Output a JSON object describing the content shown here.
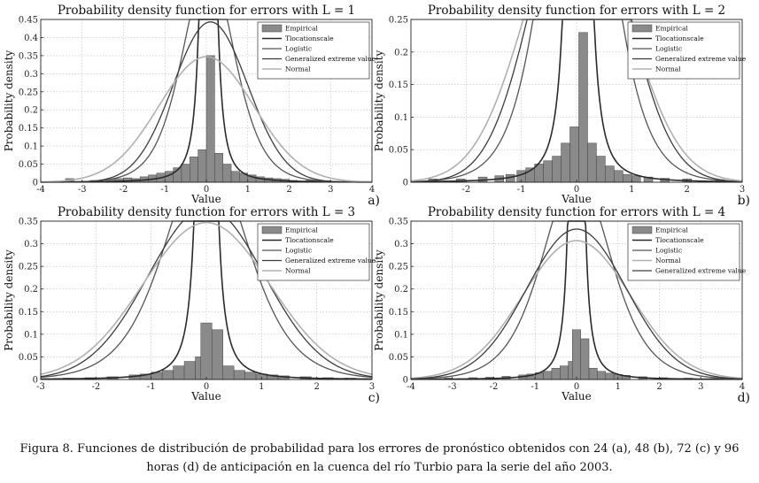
{
  "caption": "Figura 8. Funciones de distribución de probabilidad para los errores de pronóstico obtenidos con 24 (a), 48 (b), 72 (c) y 96 horas (d) de anticipación en la cuenca del río Turbio para la serie del año 2003.",
  "colors": {
    "bars": "#8a8a8a",
    "bar_edge": "#444444",
    "tlocation": "#2a2a2a",
    "logistic": "#555555",
    "gev": "#3c3c3c",
    "normal": "#b0b0b0",
    "grid": "#bbbbbb"
  },
  "chart_data": [
    {
      "type": "bar+line",
      "panel": "a)",
      "title": "Probability density function for errors with L = 1",
      "xlabel": "Value",
      "ylabel": "Probability density",
      "xlim": [
        -4,
        4
      ],
      "ylim": [
        0,
        0.45
      ],
      "xticks": [
        -4,
        -3,
        -2,
        -1,
        0,
        1,
        2,
        3,
        4
      ],
      "yticks": [
        0,
        0.05,
        0.1,
        0.15,
        0.2,
        0.25,
        0.3,
        0.35,
        0.4,
        0.45
      ],
      "grid": true,
      "legend_position": "top-right",
      "legend": [
        "Empirical",
        "Tlocationscale",
        "Logistic",
        "Generalized extreme value",
        "Normal"
      ],
      "histogram": {
        "bin_width": 0.2,
        "bins": [
          [
            -3.3,
            0.01
          ],
          [
            -2.7,
            0.005
          ],
          [
            -2.3,
            0.008
          ],
          [
            -2.1,
            0.01
          ],
          [
            -1.9,
            0.012
          ],
          [
            -1.7,
            0.01
          ],
          [
            -1.5,
            0.015
          ],
          [
            -1.3,
            0.02
          ],
          [
            -1.1,
            0.025
          ],
          [
            -0.9,
            0.03
          ],
          [
            -0.7,
            0.04
          ],
          [
            -0.5,
            0.05
          ],
          [
            -0.3,
            0.07
          ],
          [
            -0.1,
            0.09
          ],
          [
            0.1,
            0.35
          ],
          [
            0.3,
            0.08
          ],
          [
            0.5,
            0.05
          ],
          [
            0.7,
            0.03
          ],
          [
            0.9,
            0.025
          ],
          [
            1.1,
            0.02
          ],
          [
            1.3,
            0.015
          ],
          [
            1.5,
            0.012
          ],
          [
            1.7,
            0.01
          ],
          [
            1.9,
            0.008
          ],
          [
            2.1,
            0.005
          ],
          [
            2.5,
            0.005
          ],
          [
            2.9,
            0.004
          ]
        ]
      },
      "series": [
        {
          "name": "Tlocationscale",
          "dist": "t",
          "mu": 0.05,
          "sigma": 0.09,
          "nu": 1.4
        },
        {
          "name": "Logistic",
          "dist": "logistic",
          "mu": 0.05,
          "s": 0.42
        },
        {
          "name": "Generalized extreme value",
          "dist": "normal",
          "mu": 0.1,
          "sigma": 0.9
        },
        {
          "name": "Normal",
          "dist": "normal",
          "mu": 0.0,
          "sigma": 1.15
        }
      ]
    },
    {
      "type": "bar+line",
      "panel": "b)",
      "title": "Probability density function for errors with L = 2",
      "xlabel": "Value",
      "ylabel": "Probability density",
      "xlim": [
        -3,
        3
      ],
      "ylim": [
        0,
        0.25
      ],
      "xticks": [
        -2,
        -1,
        0,
        1,
        2,
        3
      ],
      "yticks": [
        0,
        0.05,
        0.1,
        0.15,
        0.2,
        0.25
      ],
      "grid": true,
      "legend_position": "top-right",
      "legend": [
        "Empirical",
        "Tlocationscale",
        "Logistic",
        "Generalized extreme value",
        "Normal"
      ],
      "histogram": {
        "bin_width": 0.16,
        "bins": [
          [
            -2.6,
            0.005
          ],
          [
            -2.1,
            0.005
          ],
          [
            -1.7,
            0.008
          ],
          [
            -1.4,
            0.01
          ],
          [
            -1.2,
            0.012
          ],
          [
            -1.0,
            0.018
          ],
          [
            -0.84,
            0.022
          ],
          [
            -0.68,
            0.028
          ],
          [
            -0.52,
            0.033
          ],
          [
            -0.36,
            0.04
          ],
          [
            -0.2,
            0.06
          ],
          [
            -0.04,
            0.085
          ],
          [
            0.12,
            0.23
          ],
          [
            0.28,
            0.06
          ],
          [
            0.44,
            0.04
          ],
          [
            0.6,
            0.025
          ],
          [
            0.76,
            0.018
          ],
          [
            0.92,
            0.012
          ],
          [
            1.08,
            0.01
          ],
          [
            1.3,
            0.008
          ],
          [
            1.6,
            0.006
          ],
          [
            2.0,
            0.005
          ],
          [
            2.6,
            0.004
          ]
        ]
      },
      "series": [
        {
          "name": "Tlocationscale",
          "dist": "t",
          "mu": 0.03,
          "sigma": 0.08,
          "nu": 1.5
        },
        {
          "name": "Logistic",
          "dist": "logistic",
          "mu": 0.02,
          "s": 0.38
        },
        {
          "name": "Generalized extreme value",
          "dist": "normal",
          "mu": 0.05,
          "sigma": 0.82
        },
        {
          "name": "Normal",
          "dist": "normal",
          "mu": 0.0,
          "sigma": 0.92
        }
      ]
    },
    {
      "type": "bar+line",
      "panel": "c)",
      "title": "Probability density function for errors with L = 3",
      "xlabel": "Value",
      "ylabel": "Probability density",
      "xlim": [
        -3,
        3
      ],
      "ylim": [
        0,
        0.35
      ],
      "xticks": [
        -3,
        -2,
        -1,
        0,
        1,
        2,
        3
      ],
      "yticks": [
        0,
        0.05,
        0.1,
        0.15,
        0.2,
        0.25,
        0.3,
        0.35
      ],
      "grid": true,
      "legend_position": "top-right",
      "legend": [
        "Empirical",
        "Tlocationscale",
        "Logistic",
        "Generalized extreme value",
        "Normal"
      ],
      "histogram": {
        "bin_width": 0.2,
        "bins": [
          [
            -2.5,
            0.003
          ],
          [
            -2.1,
            0.004
          ],
          [
            -1.7,
            0.006
          ],
          [
            -1.3,
            0.01
          ],
          [
            -1.1,
            0.012
          ],
          [
            -0.9,
            0.016
          ],
          [
            -0.7,
            0.02
          ],
          [
            -0.5,
            0.03
          ],
          [
            -0.3,
            0.04
          ],
          [
            -0.1,
            0.05
          ],
          [
            0.0,
            0.125
          ],
          [
            0.2,
            0.11
          ],
          [
            0.4,
            0.03
          ],
          [
            0.6,
            0.02
          ],
          [
            0.8,
            0.016
          ],
          [
            1.0,
            0.012
          ],
          [
            1.2,
            0.01
          ],
          [
            1.4,
            0.008
          ],
          [
            1.8,
            0.006
          ],
          [
            2.2,
            0.004
          ],
          [
            2.6,
            0.003
          ]
        ]
      },
      "series": [
        {
          "name": "Tlocationscale",
          "dist": "t",
          "mu": 0.0,
          "sigma": 0.065,
          "nu": 1.3
        },
        {
          "name": "Logistic",
          "dist": "logistic",
          "mu": 0.0,
          "s": 0.5
        },
        {
          "name": "Generalized extreme value",
          "dist": "normal",
          "mu": 0.0,
          "sigma": 1.05
        },
        {
          "name": "Normal",
          "dist": "normal",
          "mu": 0.0,
          "sigma": 1.15
        }
      ]
    },
    {
      "type": "bar+line",
      "panel": "d)",
      "title": "Probability density function for errors with L = 4",
      "xlabel": "Value",
      "ylabel": "Probability density",
      "xlim": [
        -4,
        4
      ],
      "ylim": [
        0,
        0.35
      ],
      "xticks": [
        -4,
        -3,
        -2,
        -1,
        0,
        1,
        2,
        3,
        4
      ],
      "yticks": [
        0,
        0.05,
        0.1,
        0.15,
        0.2,
        0.25,
        0.3,
        0.35
      ],
      "grid": true,
      "legend_position": "top-right",
      "legend": [
        "Empirical",
        "Tlocationscale",
        "Logistic",
        "Normal",
        "Generalized extreme value"
      ],
      "histogram": {
        "bin_width": 0.2,
        "bins": [
          [
            -3.1,
            0.003
          ],
          [
            -2.5,
            0.004
          ],
          [
            -2.1,
            0.005
          ],
          [
            -1.7,
            0.007
          ],
          [
            -1.3,
            0.01
          ],
          [
            -1.1,
            0.012
          ],
          [
            -0.9,
            0.015
          ],
          [
            -0.7,
            0.018
          ],
          [
            -0.5,
            0.025
          ],
          [
            -0.3,
            0.03
          ],
          [
            -0.1,
            0.04
          ],
          [
            0.0,
            0.11
          ],
          [
            0.2,
            0.09
          ],
          [
            0.4,
            0.025
          ],
          [
            0.6,
            0.018
          ],
          [
            0.8,
            0.014
          ],
          [
            1.0,
            0.011
          ],
          [
            1.2,
            0.009
          ],
          [
            1.6,
            0.006
          ],
          [
            2.1,
            0.004
          ],
          [
            2.7,
            0.003
          ],
          [
            3.3,
            0.002
          ]
        ]
      },
      "series": [
        {
          "name": "Tlocationscale",
          "dist": "t",
          "mu": 0.0,
          "sigma": 0.06,
          "nu": 1.3
        },
        {
          "name": "Logistic",
          "dist": "logistic",
          "mu": 0.0,
          "s": 0.55
        },
        {
          "name": "Normal",
          "dist": "normal",
          "mu": 0.0,
          "sigma": 1.3
        },
        {
          "name": "Generalized extreme value",
          "dist": "normal",
          "mu": 0.0,
          "sigma": 1.2
        }
      ]
    }
  ]
}
